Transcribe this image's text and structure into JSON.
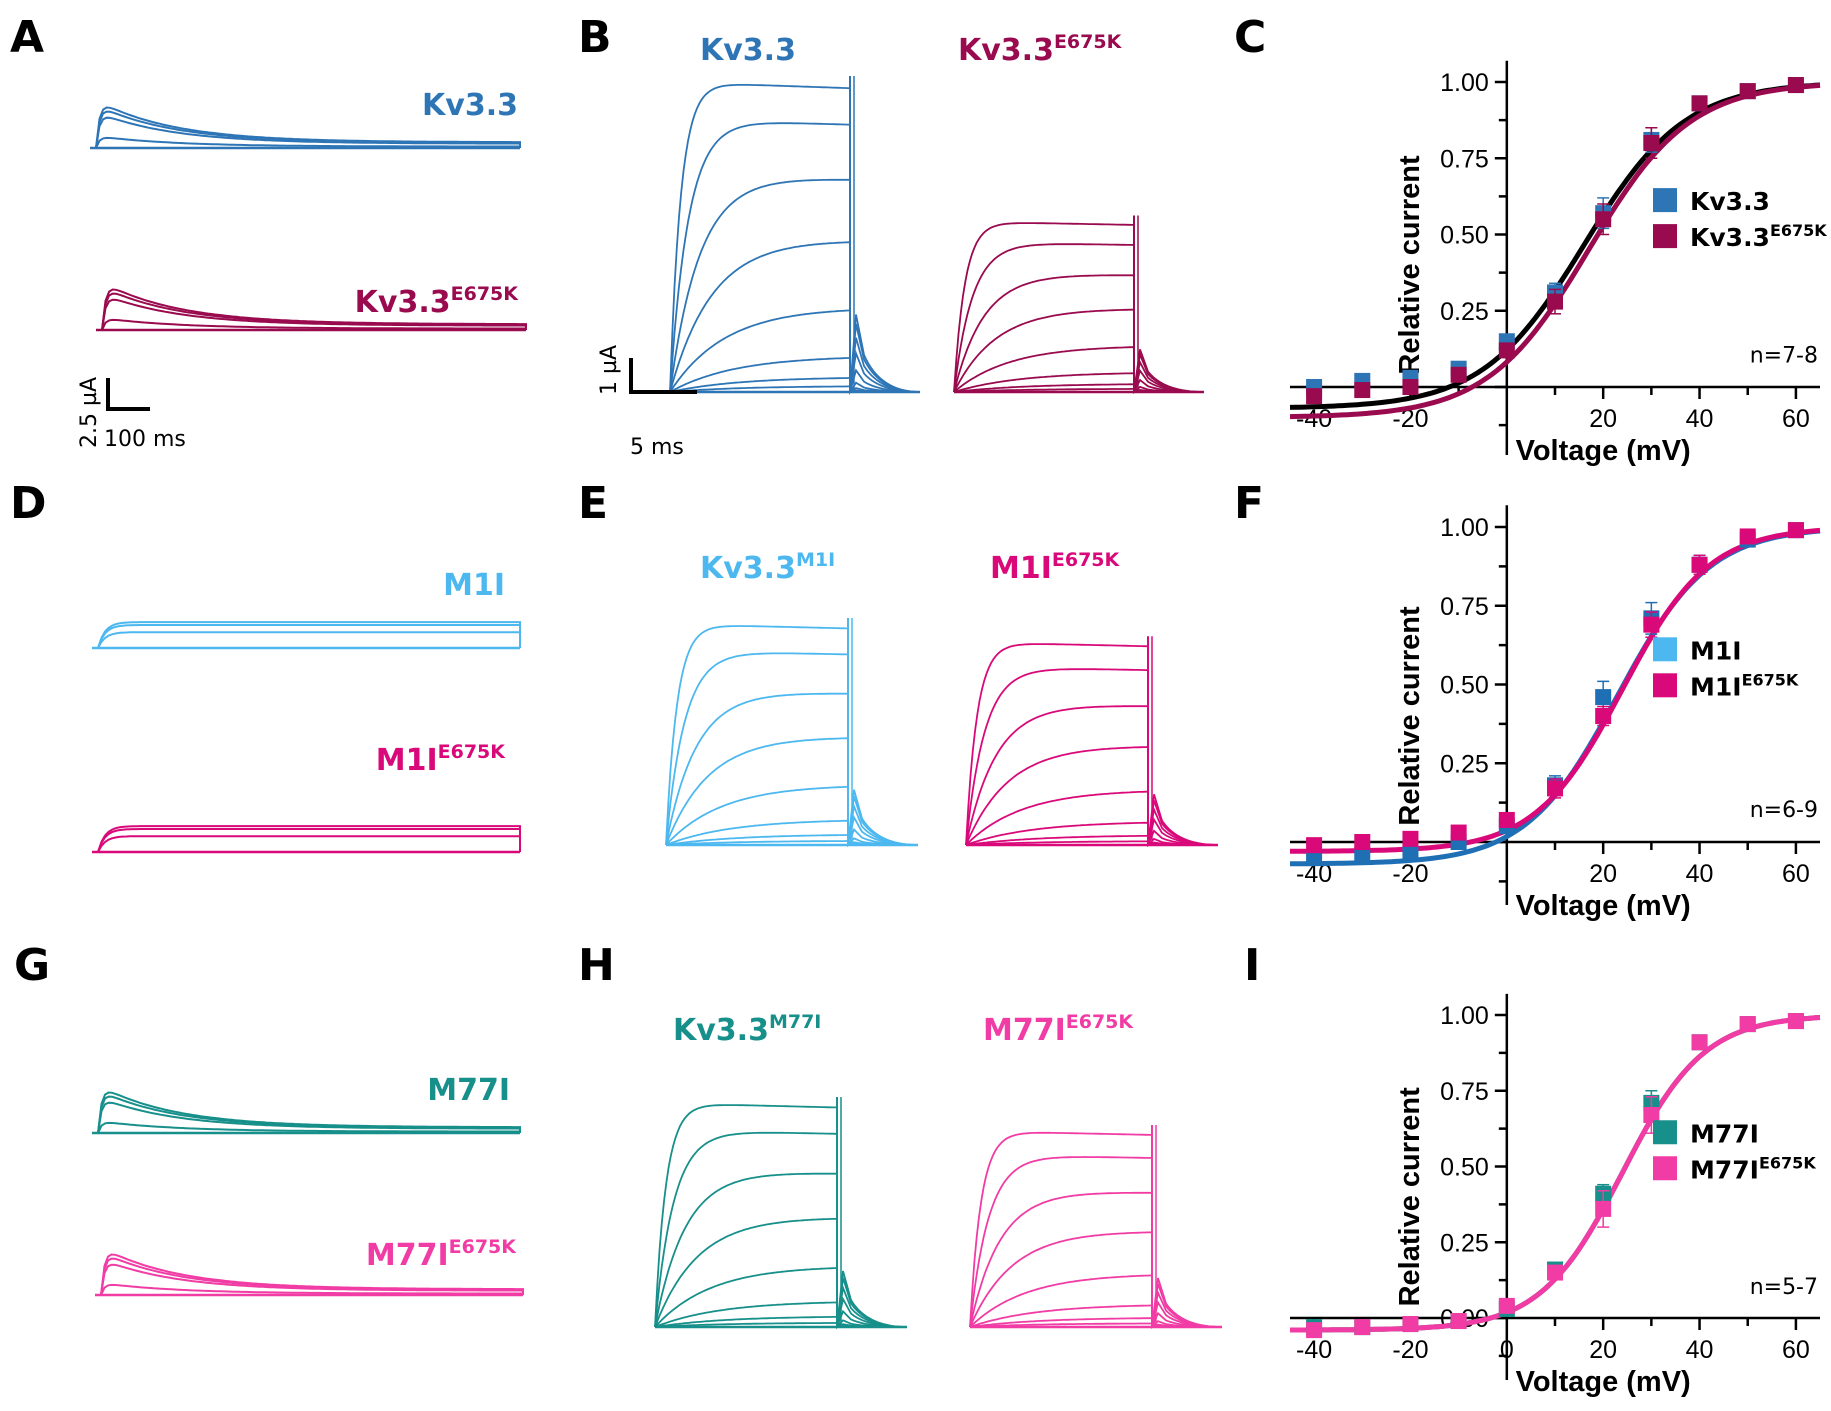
{
  "figure": {
    "panels": {
      "A": {
        "label": "A",
        "traces": [
          {
            "name": "Kv3.3",
            "base": "Kv3.3",
            "sup": "",
            "color": "#2e75b6",
            "kind": "long-inactivating"
          },
          {
            "name": "Kv3.3E675K",
            "base": "Kv3.3",
            "sup": "E675K",
            "color": "#990a4e",
            "kind": "long-inactivating"
          }
        ],
        "scale_bar": {
          "y_label": "2.5 µA",
          "x_label": "100 ms"
        }
      },
      "B": {
        "label": "B",
        "traces": [
          {
            "name": "Kv3.3",
            "base": "Kv3.3",
            "sup": "",
            "color": "#2e75b6",
            "kind": "family",
            "amp": 1.0
          },
          {
            "name": "Kv3.3E675K",
            "base": "Kv3.3",
            "sup": "E675K",
            "color": "#990a4e",
            "kind": "family",
            "amp": 0.55
          }
        ],
        "scale_bar": {
          "y_label": "1 µA",
          "x_label": "5 ms"
        }
      },
      "D": {
        "label": "D",
        "traces": [
          {
            "name": "M1I",
            "base": "M1I",
            "sup": "",
            "color": "#4cb8ef",
            "kind": "long-sustained"
          },
          {
            "name": "M1IE675K",
            "base": "M1I",
            "sup": "E675K",
            "color": "#d9097a",
            "kind": "long-sustained"
          }
        ]
      },
      "E": {
        "label": "E",
        "traces": [
          {
            "name": "Kv3.3M1I",
            "base": "Kv3.3",
            "sup": "M1I",
            "color": "#4cb8ef",
            "kind": "family",
            "amp": 0.85
          },
          {
            "name": "M1IE675K",
            "base": "M1I",
            "sup": "E675K",
            "color": "#d9097a",
            "kind": "family",
            "amp": 0.78
          }
        ]
      },
      "G": {
        "label": "G",
        "traces": [
          {
            "name": "M77I",
            "base": "M77I",
            "sup": "",
            "color": "#178f8a",
            "kind": "long-inactivating"
          },
          {
            "name": "M77IE675K",
            "base": "M77I",
            "sup": "E675K",
            "color": "#f03ca4",
            "kind": "long-inactivating"
          }
        ]
      },
      "H": {
        "label": "H",
        "traces": [
          {
            "name": "Kv3.3M77I",
            "base": "Kv3.3",
            "sup": "M77I",
            "color": "#178f8a",
            "kind": "family",
            "amp": 0.8
          },
          {
            "name": "M77IE675K",
            "base": "M77I",
            "sup": "E675K",
            "color": "#f03ca4",
            "kind": "family",
            "amp": 0.7
          }
        ]
      }
    }
  },
  "chart_data": [
    {
      "panel": "C",
      "type": "scatter",
      "xlabel": "Voltage (mV)",
      "ylabel": "Relative current",
      "xlim": [
        -45,
        65
      ],
      "ylim": [
        -0.12,
        1.05
      ],
      "xticks": [
        -40,
        -20,
        20,
        40,
        60
      ],
      "yticks": [
        "0.25",
        "0.50",
        "0.75",
        "1.00"
      ],
      "n_label": "n=7-8",
      "legend": "center-right",
      "x": [
        -40,
        -30,
        -20,
        -10,
        0,
        10,
        20,
        30,
        40,
        50,
        60
      ],
      "series": [
        {
          "name": "Kv3.3",
          "base": "Kv3.3",
          "sup": "",
          "color": "#2e75b6",
          "fit_color": "#000000",
          "values": [
            0.0,
            0.02,
            0.03,
            0.06,
            0.15,
            0.31,
            0.57,
            0.81,
            0.93,
            0.97,
            0.99
          ],
          "errors": [
            0.01,
            0.01,
            0.01,
            0.01,
            0.02,
            0.03,
            0.05,
            0.04,
            0.02,
            0.01,
            0.01
          ],
          "fit": {
            "v_half": 16,
            "k": 10.5,
            "offset": -0.07
          }
        },
        {
          "name": "Kv3.3E675K",
          "base": "Kv3.3",
          "sup": "E675K",
          "color": "#990a4e",
          "fit_color": "#990a4e",
          "values": [
            -0.03,
            -0.01,
            0.0,
            0.04,
            0.12,
            0.28,
            0.55,
            0.8,
            0.93,
            0.97,
            0.99
          ],
          "errors": [
            0.01,
            0.01,
            0.01,
            0.01,
            0.02,
            0.04,
            0.05,
            0.05,
            0.02,
            0.01,
            0.01
          ],
          "fit": {
            "v_half": 17,
            "k": 10.5,
            "offset": -0.1
          }
        }
      ]
    },
    {
      "panel": "F",
      "type": "scatter",
      "xlabel": "Voltage (mV)",
      "ylabel": "Relative current",
      "xlim": [
        -45,
        65
      ],
      "ylim": [
        -0.12,
        1.05
      ],
      "xticks": [
        -40,
        -20,
        20,
        40,
        60
      ],
      "yticks": [
        "0.25",
        "0.50",
        "0.75",
        "1.00"
      ],
      "n_label": "n=6-9",
      "legend": "center-right",
      "x": [
        -40,
        -30,
        -20,
        -10,
        0,
        10,
        20,
        30,
        40,
        50,
        60
      ],
      "series": [
        {
          "name": "M1I",
          "base": "M1I",
          "sup": "",
          "color": "#4cb8ef",
          "fit_color": "#1f6fb5",
          "marker_color": "#1f6fb5",
          "values": [
            -0.05,
            -0.04,
            -0.03,
            0.0,
            0.05,
            0.18,
            0.46,
            0.71,
            0.88,
            0.96,
            0.99
          ],
          "errors": [
            0.01,
            0.01,
            0.01,
            0.01,
            0.02,
            0.03,
            0.05,
            0.05,
            0.03,
            0.01,
            0.01
          ],
          "fit": {
            "v_half": 23,
            "k": 9.5,
            "offset": -0.07
          }
        },
        {
          "name": "M1IE675K",
          "base": "M1I",
          "sup": "E675K",
          "color": "#d9097a",
          "fit_color": "#d9097a",
          "values": [
            -0.01,
            0.0,
            0.01,
            0.03,
            0.07,
            0.17,
            0.4,
            0.69,
            0.88,
            0.97,
            0.99
          ],
          "errors": [
            0.01,
            0.01,
            0.01,
            0.01,
            0.02,
            0.03,
            0.03,
            0.04,
            0.03,
            0.01,
            0.01
          ],
          "fit": {
            "v_half": 24,
            "k": 9.0,
            "offset": -0.03
          }
        }
      ]
    },
    {
      "panel": "I",
      "type": "scatter",
      "xlabel": "Voltage (mV)",
      "ylabel": "Relative current",
      "xlim": [
        -45,
        65
      ],
      "ylim": [
        -0.12,
        1.05
      ],
      "xticks": [
        -40,
        -20,
        0,
        20,
        40,
        60
      ],
      "yticks": [
        "0.00",
        "0.25",
        "0.50",
        "0.75",
        "1.00"
      ],
      "n_label": "n=5-7",
      "legend": "center-right",
      "x": [
        -40,
        -30,
        -20,
        -10,
        0,
        10,
        20,
        30,
        40,
        50,
        60
      ],
      "series": [
        {
          "name": "M77I",
          "base": "M77I",
          "sup": "",
          "color": "#178f8a",
          "fit_color": "#1b5e5a",
          "values": [
            -0.03,
            -0.03,
            -0.02,
            -0.01,
            0.03,
            0.16,
            0.41,
            0.71,
            0.91,
            0.97,
            0.98
          ],
          "errors": [
            0.01,
            0.01,
            0.01,
            0.01,
            0.01,
            0.02,
            0.03,
            0.04,
            0.02,
            0.01,
            0.01
          ],
          "fit": {
            "v_half": 24,
            "k": 8.5,
            "offset": -0.04
          }
        },
        {
          "name": "M77IE675K",
          "base": "M77I",
          "sup": "E675K",
          "color": "#f03ca4",
          "fit_color": "#f03ca4",
          "values": [
            -0.04,
            -0.03,
            -0.02,
            -0.01,
            0.04,
            0.15,
            0.36,
            0.67,
            0.91,
            0.97,
            0.98
          ],
          "errors": [
            0.01,
            0.01,
            0.01,
            0.01,
            0.01,
            0.02,
            0.06,
            0.06,
            0.02,
            0.01,
            0.01
          ],
          "fit": {
            "v_half": 24,
            "k": 8.5,
            "offset": -0.04
          }
        }
      ]
    }
  ]
}
